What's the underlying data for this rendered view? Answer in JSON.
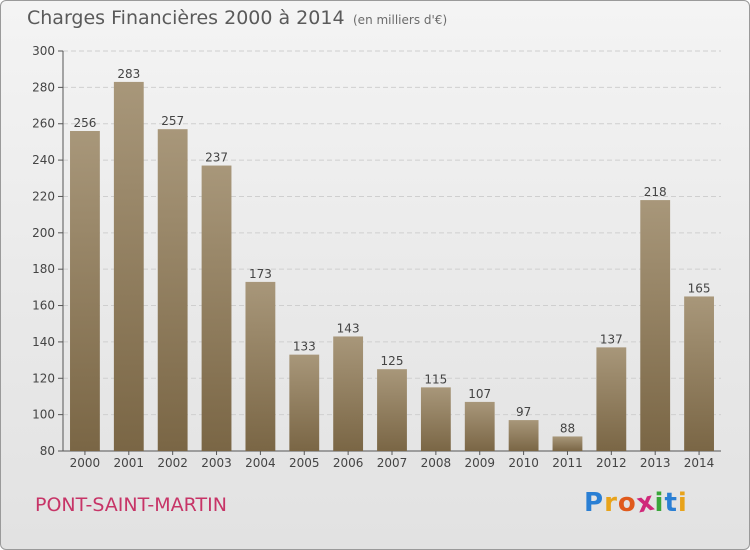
{
  "header": {
    "title": "Charges Financières 2000 à 2014",
    "subtitle": "(en milliers d'€)"
  },
  "footer": {
    "place": "PONT-SAINT-MARTIN",
    "brand_logo": {
      "letters": [
        "P",
        "r",
        "o",
        "x",
        "i",
        "t",
        "i"
      ],
      "colors": [
        "#2a7fd4",
        "#e8a31a",
        "#e05a1c",
        "#d0287a",
        "#3aa63a",
        "#2a7fd4",
        "#e8a31a"
      ]
    }
  },
  "chart_data": {
    "type": "bar",
    "categories": [
      "2000",
      "2001",
      "2002",
      "2003",
      "2004",
      "2005",
      "2006",
      "2007",
      "2008",
      "2009",
      "2010",
      "2011",
      "2012",
      "2013",
      "2014"
    ],
    "values": [
      256,
      283,
      257,
      237,
      173,
      133,
      143,
      125,
      115,
      107,
      97,
      88,
      137,
      218,
      165
    ],
    "title": "Charges Financières 2000 à 2014",
    "subtitle": "(en milliers d'€)",
    "ylim": [
      80,
      300
    ],
    "yticks": [
      80,
      100,
      120,
      140,
      160,
      180,
      200,
      220,
      240,
      260,
      280,
      300
    ],
    "grid": true,
    "data_labels": true,
    "colors": {
      "bar_light": "#a8977a",
      "bar_dark": "#7a6645"
    }
  }
}
